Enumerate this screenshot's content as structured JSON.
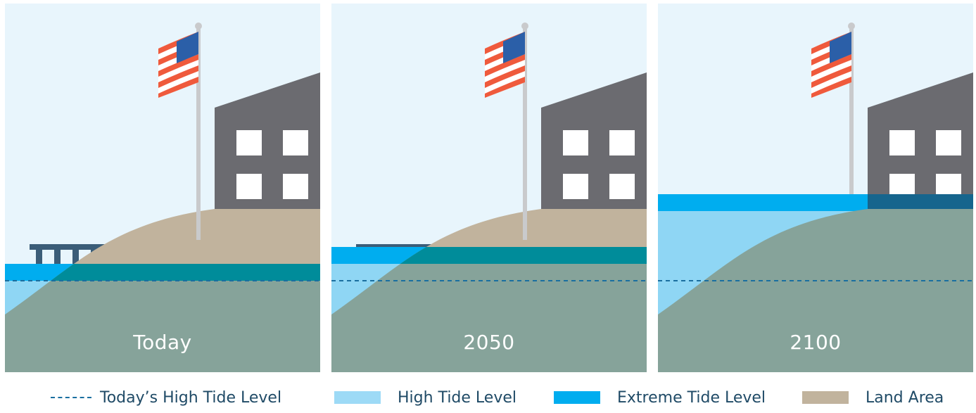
{
  "panels": [
    {
      "label": "Today",
      "extreme_tide": "low",
      "high_tide": "base"
    },
    {
      "label": "2050",
      "extreme_tide": "mid",
      "high_tide": "raised"
    },
    {
      "label": "2100",
      "extreme_tide": "high",
      "high_tide": "flooded"
    }
  ],
  "legend": [
    {
      "label": "Today’s High Tide Level",
      "swatch": "dashed-line",
      "color": "#1a6fa0"
    },
    {
      "label": "High Tide Level",
      "swatch": "box",
      "color": "#9ddaf6"
    },
    {
      "label": "Extreme Tide Level",
      "swatch": "box",
      "color": "#00adef"
    },
    {
      "label": "Land Area",
      "swatch": "box",
      "color": "#c1b39d"
    }
  ],
  "colors": {
    "sky": "#e8f5fc",
    "high_tide": "#8fd6f4",
    "extreme_tide": "#00adef",
    "land": "#c1b39d",
    "submerged_land": "#86a39a",
    "building": "#6b6b70",
    "window": "#ffffff",
    "pier": "#3b5d78",
    "flagpole": "#c9cacc"
  }
}
